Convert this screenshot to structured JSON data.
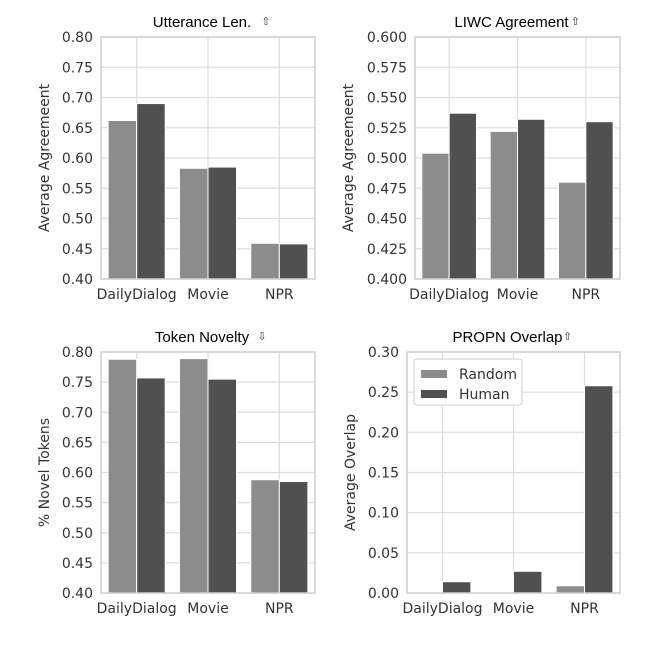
{
  "chart_data": [
    {
      "type": "bar",
      "title": "Utterance Len.",
      "title_icon": "up-arrow-icon",
      "xlabel": "",
      "ylabel": "Average Agreemeent",
      "categories": [
        "DailyDialog",
        "Movie",
        "NPR"
      ],
      "ylim": [
        0.4,
        0.8
      ],
      "yticks": [
        "0.40",
        "0.45",
        "0.50",
        "0.55",
        "0.60",
        "0.65",
        "0.70",
        "0.75",
        "0.80"
      ],
      "grid": true,
      "series": [
        {
          "name": "Random",
          "values": [
            0.662,
            0.583,
            0.459
          ]
        },
        {
          "name": "Human",
          "values": [
            0.69,
            0.585,
            0.458
          ]
        }
      ]
    },
    {
      "type": "bar",
      "title": "LIWC Agreement",
      "title_icon": "up-arrow-icon",
      "xlabel": "",
      "ylabel": "Average Agreemeent",
      "categories": [
        "DailyDialog",
        "Movie",
        "NPR"
      ],
      "ylim": [
        0.4,
        0.6
      ],
      "yticks": [
        "0.400",
        "0.425",
        "0.450",
        "0.475",
        "0.500",
        "0.525",
        "0.550",
        "0.575",
        "0.600"
      ],
      "grid": true,
      "series": [
        {
          "name": "Random",
          "values": [
            0.504,
            0.522,
            0.48
          ]
        },
        {
          "name": "Human",
          "values": [
            0.537,
            0.532,
            0.53
          ]
        }
      ]
    },
    {
      "type": "bar",
      "title": "Token Novelty",
      "title_icon": "down-arrow-icon",
      "xlabel": "",
      "ylabel": "% Novel Tokens",
      "categories": [
        "DailyDialog",
        "Movie",
        "NPR"
      ],
      "ylim": [
        0.4,
        0.8
      ],
      "yticks": [
        "0.40",
        "0.45",
        "0.50",
        "0.55",
        "0.60",
        "0.65",
        "0.70",
        "0.75",
        "0.80"
      ],
      "grid": true,
      "series": [
        {
          "name": "Random",
          "values": [
            0.788,
            0.789,
            0.588
          ]
        },
        {
          "name": "Human",
          "values": [
            0.757,
            0.755,
            0.585
          ]
        }
      ]
    },
    {
      "type": "bar",
      "title": "PROPN Overlap",
      "title_icon": "up-arrow-icon",
      "xlabel": "",
      "ylabel": "Average Overlap",
      "categories": [
        "DailyDialog",
        "Movie",
        "NPR"
      ],
      "ylim": [
        0.0,
        0.3
      ],
      "yticks": [
        "0.00",
        "0.05",
        "0.10",
        "0.15",
        "0.20",
        "0.25",
        "0.30"
      ],
      "grid": true,
      "legend": "top-left",
      "series": [
        {
          "name": "Random",
          "values": [
            0.0,
            0.0,
            0.009
          ]
        },
        {
          "name": "Human",
          "values": [
            0.014,
            0.027,
            0.258
          ]
        }
      ]
    }
  ],
  "colors": {
    "Random": "#8c8c8c",
    "Human": "#505050",
    "grid": "#dddddd"
  }
}
